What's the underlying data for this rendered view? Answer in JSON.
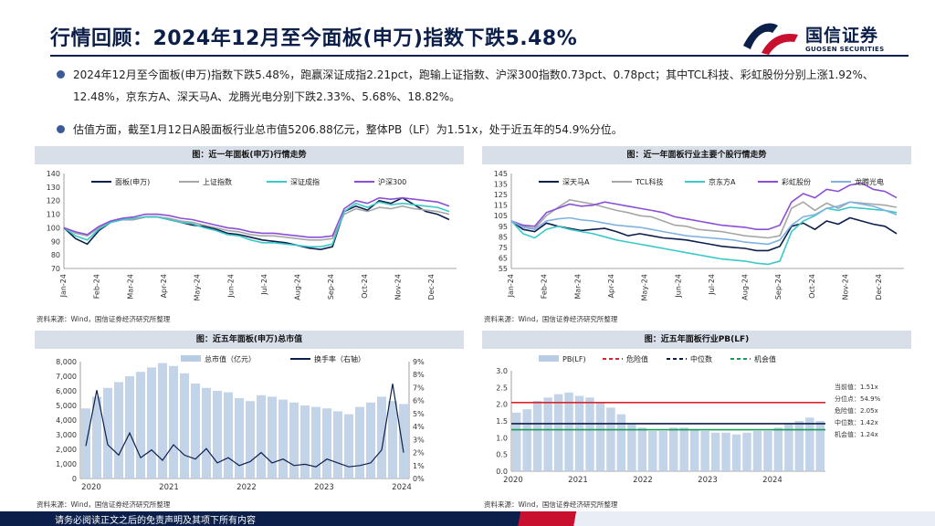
{
  "page_title": "行情回顾：2024年12月至今面板(申万)指数下跌5.48%",
  "logo": {
    "cn": "国信证券",
    "en": "GUOSEN SECURITIES",
    "icon": "guosen-logo"
  },
  "bullets": [
    "2024年12月至今面板(申万)指数下跌5.48%，跑赢深证成指2.21pct，跑输上证指数、沪深300指数0.73pct、0.78pct；其中TCL科技、彩虹股份分别上涨1.92%、12.48%，京东方A、深天马A、龙腾光电分别下跌2.33%、5.68%、18.82%。",
    "估值方面，截至1月12日A股面板行业总市值5206.88亿元，整体PB（LF）为1.51x，处于近五年的54.9%分位。"
  ],
  "panels": [
    {
      "title": "图：近一年面板(申万)行情走势",
      "source": "资料来源：Wind，国信证券经济研究所整理"
    },
    {
      "title": "图：近一年面板行业主要个股行情走势",
      "source": "资料来源：Wind，国信证券经济研究所整理"
    },
    {
      "title": "图：近五年面板(申万)总市值",
      "source": "资料来源：Wind，国信证券经济研究所整理"
    },
    {
      "title": "图：近五年面板行业PB(LF)",
      "source": "资料来源：Wind，国信证券经济研究所整理"
    }
  ],
  "footer": "请务必阅读正文之后的免责声明及其项下所有内容",
  "chart_data": [
    {
      "type": "line",
      "title": "图：近一年面板(申万)行情走势",
      "ylim": [
        70,
        140
      ],
      "yticks": [
        70,
        80,
        90,
        100,
        110,
        120,
        130,
        140
      ],
      "x_ticks": [
        "Jan-24",
        "Feb-24",
        "Mar-24",
        "Apr-24",
        "May-24",
        "Jun-24",
        "Jul-24",
        "Aug-24",
        "Sep-24",
        "Oct-24",
        "Nov-24",
        "Dec-24"
      ],
      "legend": "top",
      "series": [
        {
          "name": "面板(申万)",
          "color": "#0d1f4d",
          "values": [
            100,
            92,
            88,
            98,
            104,
            106,
            106,
            108,
            108,
            106,
            104,
            102,
            101,
            99,
            96,
            95,
            93,
            91,
            90,
            89,
            87,
            85,
            84,
            86,
            112,
            116,
            113,
            120,
            118,
            122,
            117,
            112,
            110,
            106
          ]
        },
        {
          "name": "上证指数",
          "color": "#a6a6a6",
          "values": [
            100,
            96,
            94,
            100,
            104,
            106,
            106,
            108,
            108,
            107,
            105,
            104,
            102,
            100,
            98,
            97,
            95,
            94,
            94,
            93,
            92,
            91,
            91,
            92,
            110,
            114,
            112,
            115,
            114,
            116,
            114,
            113,
            112,
            110
          ]
        },
        {
          "name": "深证成指",
          "color": "#3cc8c8",
          "values": [
            100,
            94,
            91,
            99,
            104,
            106,
            107,
            108,
            108,
            106,
            104,
            103,
            100,
            98,
            95,
            94,
            91,
            89,
            89,
            88,
            87,
            86,
            86,
            88,
            112,
            118,
            115,
            119,
            117,
            118,
            117,
            116,
            115,
            112
          ]
        },
        {
          "name": "沪深300",
          "color": "#8a4fd6",
          "values": [
            100,
            97,
            95,
            101,
            105,
            107,
            108,
            110,
            110,
            109,
            107,
            106,
            104,
            102,
            100,
            99,
            97,
            96,
            96,
            95,
            94,
            93,
            93,
            94,
            114,
            120,
            118,
            122,
            121,
            122,
            121,
            120,
            119,
            116
          ]
        }
      ]
    },
    {
      "type": "line",
      "title": "图：近一年面板行业主要个股行情走势",
      "ylim": [
        55,
        145
      ],
      "yticks": [
        55,
        65,
        75,
        85,
        95,
        105,
        115,
        125,
        135,
        145
      ],
      "x_ticks": [
        "Jan-24",
        "Feb-24",
        "Mar-24",
        "Apr-24",
        "May-24",
        "Jun-24",
        "Jul-24",
        "Aug-24",
        "Sep-24",
        "Oct-24",
        "Nov-24",
        "Dec-24"
      ],
      "legend": "top",
      "series": [
        {
          "name": "深天马A",
          "color": "#0d1f4d",
          "values": [
            100,
            92,
            90,
            98,
            95,
            93,
            91,
            92,
            93,
            90,
            86,
            88,
            86,
            84,
            83,
            82,
            80,
            78,
            76,
            75,
            74,
            72,
            72,
            76,
            95,
            98,
            92,
            100,
            97,
            103,
            100,
            97,
            95,
            88
          ]
        },
        {
          "name": "TCL科技",
          "color": "#a6a6a6",
          "values": [
            100,
            95,
            93,
            105,
            113,
            120,
            118,
            116,
            113,
            110,
            108,
            105,
            104,
            100,
            96,
            95,
            92,
            91,
            90,
            88,
            86,
            85,
            84,
            86,
            112,
            118,
            110,
            117,
            112,
            118,
            117,
            116,
            115,
            113
          ]
        },
        {
          "name": "京东方A",
          "color": "#3cc8c8",
          "values": [
            100,
            88,
            84,
            92,
            95,
            92,
            90,
            88,
            85,
            82,
            80,
            78,
            76,
            74,
            72,
            70,
            68,
            66,
            64,
            63,
            62,
            60,
            59,
            62,
            90,
            100,
            105,
            112,
            110,
            113,
            112,
            111,
            110,
            108
          ]
        },
        {
          "name": "彩虹股份",
          "color": "#8a4fd6",
          "values": [
            100,
            96,
            95,
            108,
            112,
            116,
            114,
            115,
            118,
            116,
            114,
            112,
            110,
            108,
            104,
            102,
            100,
            98,
            96,
            95,
            94,
            92,
            92,
            96,
            118,
            126,
            122,
            130,
            128,
            134,
            136,
            130,
            128,
            122
          ]
        },
        {
          "name": "龙腾光电",
          "color": "#7fb2e0",
          "values": [
            100,
            94,
            92,
            100,
            102,
            103,
            101,
            100,
            98,
            96,
            95,
            94,
            92,
            90,
            88,
            86,
            85,
            84,
            83,
            82,
            80,
            79,
            78,
            82,
            96,
            104,
            106,
            112,
            114,
            118,
            116,
            114,
            110,
            106
          ]
        }
      ]
    },
    {
      "type": "bar+line",
      "title": "图：近五年面板(申万)总市值",
      "ylim_left": [
        0,
        8000
      ],
      "yticks_left": [
        "0",
        "1,000",
        "2,000",
        "3,000",
        "4,000",
        "5,000",
        "6,000",
        "7,000",
        "8,000"
      ],
      "ylim_right": [
        0,
        9
      ],
      "yticks_right": [
        "0%",
        "1%",
        "2%",
        "3%",
        "4%",
        "5%",
        "6%",
        "7%",
        "8%",
        "9%"
      ],
      "x_ticks": [
        "2020",
        "2021",
        "2022",
        "2023",
        "2024"
      ],
      "legend": "top",
      "series": [
        {
          "name": "总市值（亿元）",
          "color": "#b8cce4",
          "axis": "left",
          "values": [
            4800,
            5600,
            6200,
            6600,
            7000,
            7300,
            7600,
            7900,
            7700,
            7200,
            6500,
            6200,
            6000,
            5900,
            5500,
            5300,
            5700,
            5600,
            5400,
            5200,
            5000,
            4900,
            4800,
            4600,
            4400,
            4900,
            5200,
            5600,
            5300,
            5100
          ]
        },
        {
          "name": "换手率（右轴）",
          "color": "#0d1f4d",
          "axis": "right",
          "values": [
            2.5,
            6.8,
            2.6,
            1.8,
            3.5,
            1.6,
            2.2,
            1.4,
            2.6,
            1.8,
            1.5,
            2.3,
            1.2,
            1.6,
            1.0,
            1.3,
            2.0,
            1.2,
            1.5,
            1.0,
            1.1,
            0.9,
            1.5,
            1.2,
            0.9,
            1.0,
            1.2,
            2.2,
            7.3,
            2.0
          ]
        }
      ]
    },
    {
      "type": "bar+line",
      "title": "图：近五年面板行业PB(LF)",
      "ylim": [
        0.0,
        3.0
      ],
      "yticks": [
        "0.0",
        "0.5",
        "1.0",
        "1.5",
        "2.0",
        "2.5",
        "3.0"
      ],
      "x_ticks": [
        "2020",
        "2021",
        "2022",
        "2023",
        "2024"
      ],
      "legend": "top",
      "series": [
        {
          "name": "PB(LF)",
          "color": "#b8cce4",
          "values": [
            1.75,
            1.85,
            2.1,
            2.2,
            2.3,
            2.35,
            2.25,
            2.2,
            2.05,
            1.9,
            1.7,
            1.4,
            1.3,
            1.2,
            1.2,
            1.3,
            1.3,
            1.25,
            1.2,
            1.15,
            1.15,
            1.1,
            1.15,
            1.2,
            1.2,
            1.3,
            1.4,
            1.5,
            1.6,
            1.5
          ]
        },
        {
          "name": "危险值",
          "color": "#d9262e",
          "style": "dash",
          "value": 2.05
        },
        {
          "name": "中位数",
          "color": "#0d1f4d",
          "style": "dash",
          "value": 1.42
        },
        {
          "name": "机会值",
          "color": "#1a9b5a",
          "style": "dash",
          "value": 1.24
        }
      ],
      "annotations": [
        "当前值：1.51x",
        "分位点：54.9%",
        "危险值：2.05x",
        "中位数：1.42x",
        "机会值：1.24x"
      ]
    }
  ]
}
